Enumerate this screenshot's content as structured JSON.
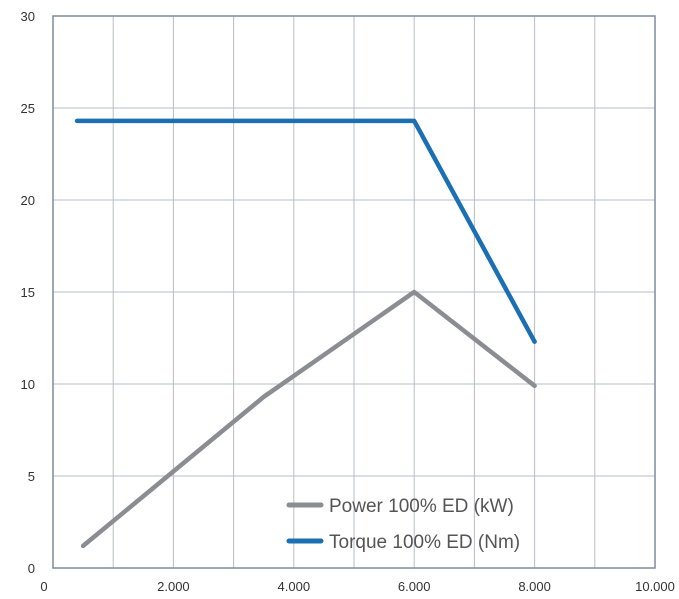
{
  "chart_data": {
    "type": "line",
    "title": "",
    "xlabel": "",
    "ylabel": "",
    "xlim": [
      0,
      10000
    ],
    "ylim": [
      0,
      30
    ],
    "x_ticks": [
      0,
      2000,
      4000,
      6000,
      8000,
      10000
    ],
    "x_tick_labels": [
      "0",
      "2.000",
      "4.000",
      "6.000",
      "8.000",
      "10.000"
    ],
    "y_ticks": [
      0,
      5,
      10,
      15,
      20,
      25,
      30
    ],
    "y_tick_labels": [
      "0",
      "5",
      "10",
      "15",
      "20",
      "25",
      "30"
    ],
    "grid": true,
    "legend_position": "bottom-right",
    "series": [
      {
        "name": "Power 100% ED (kW)",
        "color": "#8a8d91",
        "x": [
          500,
          3500,
          6000,
          8000
        ],
        "y": [
          1.2,
          9.3,
          15.0,
          9.9
        ]
      },
      {
        "name": "Torque 100% ED (Nm)",
        "color": "#1b6fb3",
        "x": [
          400,
          6000,
          8000
        ],
        "y": [
          24.3,
          24.3,
          12.3
        ]
      }
    ]
  }
}
